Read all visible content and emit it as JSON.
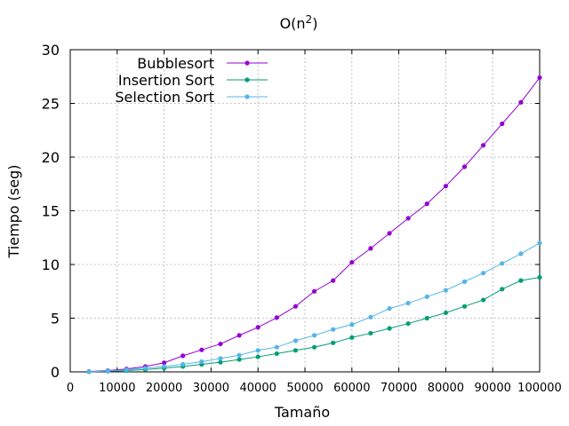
{
  "chart_data": {
    "type": "line",
    "title": "O(n",
    "title_superscript": "2",
    "title_suffix": ")",
    "xlabel": "Tamaño",
    "ylabel": "Tiempo (seg)",
    "xlim": [
      0,
      100000
    ],
    "ylim": [
      0,
      30
    ],
    "xticks": [
      0,
      10000,
      20000,
      30000,
      40000,
      50000,
      60000,
      70000,
      80000,
      90000,
      100000
    ],
    "yticks": [
      0,
      5,
      10,
      15,
      20,
      25,
      30
    ],
    "grid": true,
    "legend_position": "top-left",
    "x": [
      4000,
      8000,
      12000,
      16000,
      20000,
      24000,
      28000,
      32000,
      36000,
      40000,
      44000,
      48000,
      52000,
      56000,
      60000,
      64000,
      68000,
      72000,
      76000,
      80000,
      84000,
      88000,
      92000,
      96000,
      100000
    ],
    "series": [
      {
        "name": "Bubblesort",
        "color": "#9400d3",
        "values": [
          0.03,
          0.12,
          0.27,
          0.5,
          0.85,
          1.5,
          2.05,
          2.6,
          3.4,
          4.15,
          5.05,
          6.1,
          7.5,
          8.5,
          10.2,
          11.5,
          12.9,
          14.3,
          15.65,
          17.3,
          19.1,
          21.1,
          23.1,
          25.1,
          27.4
        ]
      },
      {
        "name": "Insertion Sort",
        "color": "#009e73",
        "values": [
          0.01,
          0.06,
          0.12,
          0.22,
          0.35,
          0.5,
          0.7,
          0.9,
          1.15,
          1.4,
          1.7,
          2.0,
          2.3,
          2.7,
          3.2,
          3.6,
          4.05,
          4.5,
          5.0,
          5.5,
          6.1,
          6.7,
          7.7,
          8.5,
          8.8
        ]
      },
      {
        "name": "Selection Sort",
        "color": "#56b4e9",
        "values": [
          0.01,
          0.08,
          0.2,
          0.35,
          0.5,
          0.7,
          0.95,
          1.25,
          1.55,
          2.0,
          2.3,
          2.9,
          3.4,
          3.95,
          4.4,
          5.1,
          5.9,
          6.4,
          7.0,
          7.6,
          8.4,
          9.2,
          10.1,
          11.0,
          12.0
        ]
      }
    ]
  }
}
